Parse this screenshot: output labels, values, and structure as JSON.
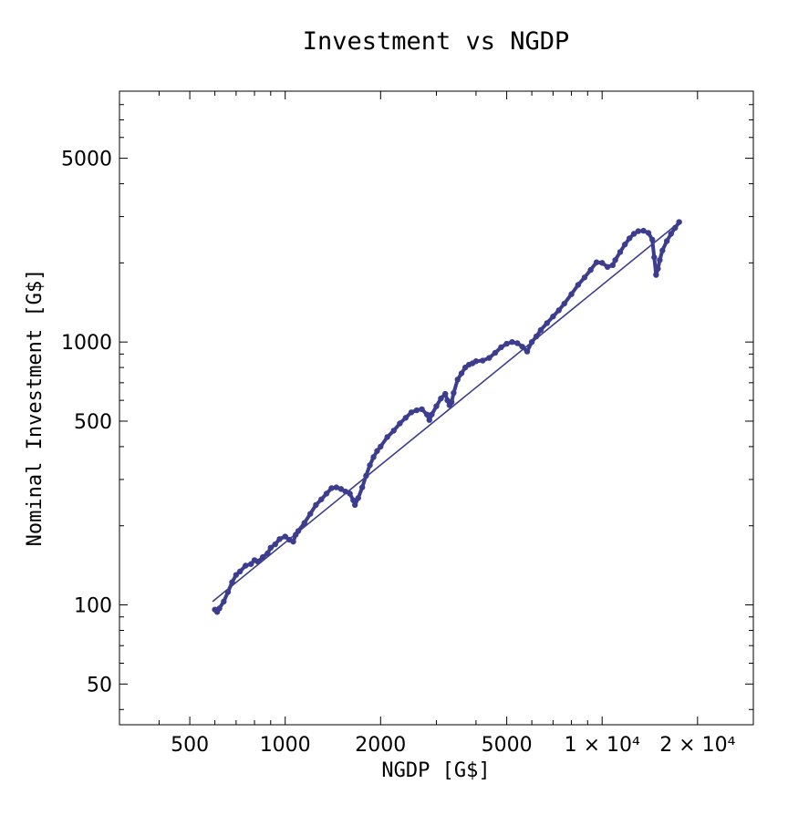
{
  "chart_data": {
    "type": "scatter",
    "title": "Investment vs NGDP",
    "xlabel": "NGDP [G$]",
    "ylabel": "Nominal Investment [G$]",
    "x_scale": "log",
    "y_scale": "log",
    "xlim": [
      300,
      30000
    ],
    "ylim": [
      35,
      9000
    ],
    "grid": false,
    "legend": "none",
    "colors": {
      "series": "#3d3d8f",
      "frame": "#000000"
    },
    "x_ticks": [
      {
        "value": 500,
        "label": "500"
      },
      {
        "value": 1000,
        "label": "1000"
      },
      {
        "value": 2000,
        "label": "2000"
      },
      {
        "value": 5000,
        "label": "5000"
      },
      {
        "value": 10000,
        "label": "1 × 10⁴"
      },
      {
        "value": 20000,
        "label": "2 × 10⁴"
      }
    ],
    "y_ticks": [
      {
        "value": 50,
        "label": "50"
      },
      {
        "value": 100,
        "label": "100"
      },
      {
        "value": 500,
        "label": "500"
      },
      {
        "value": 1000,
        "label": "1000"
      },
      {
        "value": 5000,
        "label": "5000"
      }
    ],
    "series": [
      {
        "kind": "points",
        "x": [
          600,
          610,
          620,
          640,
          660,
          680,
          700,
          720,
          750,
          780,
          800,
          820,
          850,
          880,
          900,
          930,
          960,
          1000,
          1030,
          1060,
          1080,
          1100,
          1150,
          1200,
          1250,
          1300,
          1350,
          1400,
          1450,
          1500,
          1550,
          1600,
          1640,
          1660,
          1700,
          1750,
          1800,
          1850,
          1900,
          1950,
          2000,
          2100,
          2200,
          2300,
          2400,
          2500,
          2600,
          2700,
          2800,
          2850,
          2900,
          3000,
          3100,
          3200,
          3250,
          3300,
          3350,
          3400,
          3500,
          3600,
          3700,
          3800,
          3900,
          4000,
          4200,
          4400,
          4600,
          4800,
          5000,
          5200,
          5400,
          5600,
          5800,
          6000,
          6200,
          6400,
          6700,
          7000,
          7300,
          7600,
          8000,
          8400,
          8800,
          9200,
          9600,
          10000,
          10400,
          10800,
          11000,
          11400,
          11800,
          12200,
          12600,
          13000,
          13500,
          14000,
          14400,
          14600,
          14800,
          15000,
          15200,
          15500,
          16000,
          16500,
          17000,
          17500
        ],
        "y": [
          96,
          94,
          97,
          103,
          112,
          122,
          130,
          134,
          141,
          143,
          148,
          146,
          152,
          157,
          165,
          170,
          178,
          182,
          177,
          174,
          185,
          191,
          205,
          222,
          240,
          252,
          265,
          278,
          280,
          276,
          270,
          265,
          250,
          240,
          255,
          280,
          310,
          340,
          365,
          385,
          400,
          435,
          460,
          490,
          515,
          540,
          550,
          555,
          530,
          505,
          530,
          570,
          610,
          635,
          600,
          575,
          590,
          640,
          720,
          760,
          800,
          820,
          830,
          845,
          850,
          870,
          910,
          955,
          985,
          1000,
          990,
          960,
          920,
          1000,
          1050,
          1110,
          1180,
          1250,
          1320,
          1400,
          1520,
          1650,
          1760,
          1880,
          2010,
          2000,
          1930,
          1960,
          2050,
          2200,
          2350,
          2480,
          2580,
          2640,
          2650,
          2600,
          2450,
          2100,
          1800,
          1900,
          2050,
          2230,
          2420,
          2580,
          2720,
          2860
        ]
      },
      {
        "kind": "fit-line",
        "x": [
          590,
          17500
        ],
        "y": [
          103,
          2850
        ]
      }
    ]
  }
}
